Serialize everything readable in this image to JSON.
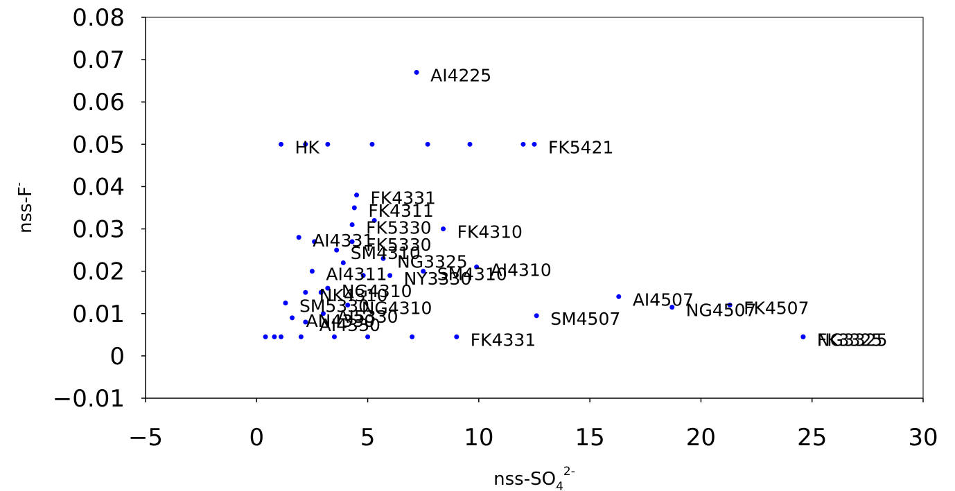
{
  "chart_data": {
    "type": "scatter",
    "title": "",
    "xlabel": {
      "base": "nss-SO",
      "sub": "4",
      "sup": "2-"
    },
    "ylabel": {
      "base": "nss-F",
      "sup": "-"
    },
    "xlim": [
      -5,
      30
    ],
    "ylim": [
      -0.01,
      0.08
    ],
    "xticks": [
      -5,
      0,
      5,
      10,
      15,
      20,
      25,
      30
    ],
    "yticks": [
      -0.01,
      0,
      0.01,
      0.02,
      0.03,
      0.04,
      0.05,
      0.06,
      0.07,
      0.08
    ],
    "xtick_labels": [
      "−5",
      "0",
      "5",
      "10",
      "15",
      "20",
      "25",
      "30"
    ],
    "ytick_labels": [
      "−0.01",
      "0",
      "0.01",
      "0.02",
      "0.03",
      "0.04",
      "0.05",
      "0.06",
      "0.07",
      "0.08"
    ],
    "grid": false,
    "legend": "none",
    "marker_color": "#0000ff",
    "points": [
      {
        "x": 7.2,
        "y": 0.067,
        "label": "AI4225"
      },
      {
        "x": 1.1,
        "y": 0.05,
        "label": "HK"
      },
      {
        "x": 2.2,
        "y": 0.05,
        "label": ""
      },
      {
        "x": 3.2,
        "y": 0.05,
        "label": ""
      },
      {
        "x": 5.2,
        "y": 0.05,
        "label": ""
      },
      {
        "x": 7.7,
        "y": 0.05,
        "label": ""
      },
      {
        "x": 9.6,
        "y": 0.05,
        "label": ""
      },
      {
        "x": 12.0,
        "y": 0.05,
        "label": ""
      },
      {
        "x": 12.5,
        "y": 0.05,
        "label": "FK5421"
      },
      {
        "x": 4.5,
        "y": 0.038,
        "label": "FK4331"
      },
      {
        "x": 4.4,
        "y": 0.035,
        "label": "FK4311"
      },
      {
        "x": 5.3,
        "y": 0.032,
        "label": ""
      },
      {
        "x": 4.3,
        "y": 0.031,
        "label": "FK5330"
      },
      {
        "x": 8.4,
        "y": 0.03,
        "label": "FK4310"
      },
      {
        "x": 1.9,
        "y": 0.028,
        "label": "AI4331"
      },
      {
        "x": 2.6,
        "y": 0.027,
        "label": ""
      },
      {
        "x": 4.3,
        "y": 0.027,
        "label": "FK5330"
      },
      {
        "x": 3.6,
        "y": 0.025,
        "label": "SM4310"
      },
      {
        "x": 5.7,
        "y": 0.023,
        "label": "NG3325"
      },
      {
        "x": 3.9,
        "y": 0.022,
        "label": ""
      },
      {
        "x": 2.5,
        "y": 0.02,
        "label": "AI4311"
      },
      {
        "x": 7.5,
        "y": 0.02,
        "label": "SM4310"
      },
      {
        "x": 9.9,
        "y": 0.021,
        "label": "AI4310"
      },
      {
        "x": 6.0,
        "y": 0.019,
        "label": "NY3330"
      },
      {
        "x": 4.8,
        "y": 0.019,
        "label": ""
      },
      {
        "x": 3.2,
        "y": 0.016,
        "label": "NG4310"
      },
      {
        "x": 2.2,
        "y": 0.015,
        "label": "NK4310"
      },
      {
        "x": 2.9,
        "y": 0.015,
        "label": ""
      },
      {
        "x": 1.3,
        "y": 0.0125,
        "label": "SM5330"
      },
      {
        "x": 4.1,
        "y": 0.012,
        "label": "NG4310"
      },
      {
        "x": 3.0,
        "y": 0.01,
        "label": "AI5330"
      },
      {
        "x": 1.6,
        "y": 0.009,
        "label": "AN4330"
      },
      {
        "x": 2.2,
        "y": 0.008,
        "label": "AI4330"
      },
      {
        "x": 16.3,
        "y": 0.014,
        "label": "AI4507"
      },
      {
        "x": 18.7,
        "y": 0.0115,
        "label": "NG4507"
      },
      {
        "x": 21.3,
        "y": 0.012,
        "label": "FK4507"
      },
      {
        "x": 12.6,
        "y": 0.0095,
        "label": "SM4507"
      },
      {
        "x": 24.6,
        "y": 0.0045,
        "label": "NG3325"
      },
      {
        "x": 24.6,
        "y": 0.0045,
        "label": "FK3325"
      },
      {
        "x": 0.4,
        "y": 0.0045,
        "label": ""
      },
      {
        "x": 0.8,
        "y": 0.0045,
        "label": ""
      },
      {
        "x": 1.1,
        "y": 0.0045,
        "label": ""
      },
      {
        "x": 2.0,
        "y": 0.0045,
        "label": ""
      },
      {
        "x": 3.5,
        "y": 0.0045,
        "label": ""
      },
      {
        "x": 5.0,
        "y": 0.0045,
        "label": ""
      },
      {
        "x": 7.0,
        "y": 0.0045,
        "label": ""
      },
      {
        "x": 9.0,
        "y": 0.0045,
        "label": "FK4331"
      }
    ]
  }
}
